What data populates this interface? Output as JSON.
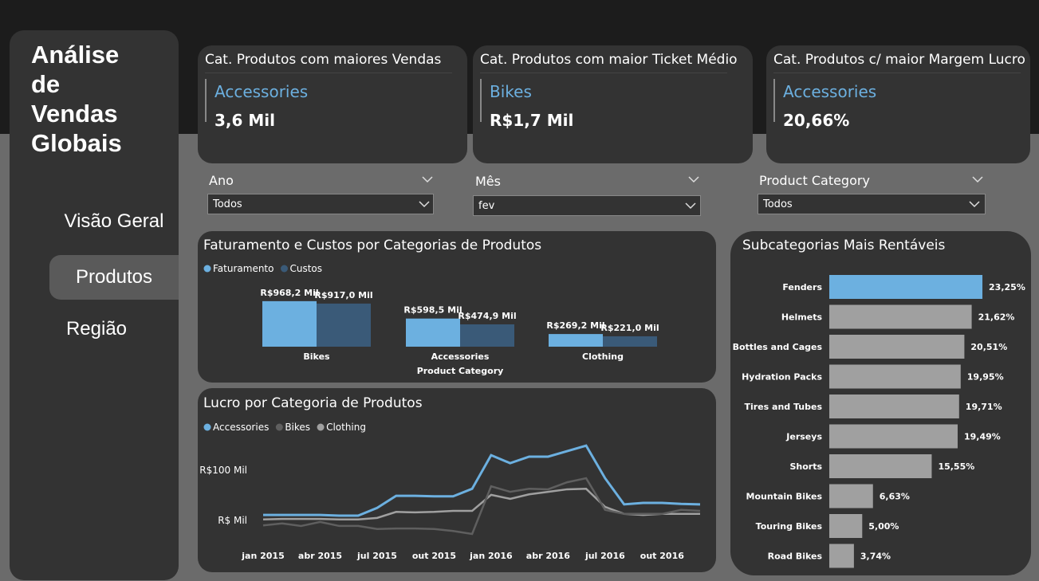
{
  "sidebar": {
    "title": "Análise de Vendas Globais",
    "nav": [
      "Visão Geral",
      "Produtos",
      "Região"
    ]
  },
  "cards": [
    {
      "title": "Cat. Produtos com maiores Vendas",
      "category": "Accessories",
      "value": "3,6 Mil"
    },
    {
      "title": "Cat. Produtos com maior Ticket Médio",
      "category": "Bikes",
      "value": "R$1,7 Mil"
    },
    {
      "title": "Cat. Produtos c/ maior Margem Lucro",
      "category": "Accessories",
      "value": "20,66%"
    }
  ],
  "filters": [
    {
      "label": "Ano",
      "value": "Todos"
    },
    {
      "label": "Mês",
      "value": "fev"
    },
    {
      "label": "Product Category",
      "value": "Todos"
    }
  ],
  "chart_data": [
    {
      "type": "bar",
      "title": "Faturamento e Custos por Categorias de Produtos",
      "x_label": "Product Category",
      "categories": [
        "Bikes",
        "Accessories",
        "Clothing"
      ],
      "series": [
        {
          "name": "Faturamento",
          "color": "#6cb0e0",
          "values": [
            968.2,
            598.5,
            269.2
          ],
          "value_labels": [
            "R$968,2 Mil",
            "R$598,5 Mil",
            "R$269,2 Mil"
          ]
        },
        {
          "name": "Custos",
          "color": "#3a5a78",
          "values": [
            917.0,
            474.9,
            221.0
          ],
          "value_labels": [
            "R$917,0 Mil",
            "R$474,9 Mil",
            "R$221,0 Mil"
          ]
        }
      ]
    },
    {
      "type": "line",
      "title": "Lucro por Categoria de Produtos",
      "categories": [
        "jan 2015",
        null,
        null,
        "abr 2015",
        null,
        null,
        "jul 2015",
        null,
        null,
        "out 2015",
        null,
        null,
        "jan 2016",
        null,
        null,
        "abr 2016",
        null,
        null,
        "jul 2016",
        null,
        null,
        "out 2016",
        null,
        null
      ],
      "series": [
        {
          "name": "Accessories",
          "color": "#6cb0e0",
          "values": [
            11,
            11,
            11,
            11,
            9.5,
            9.5,
            25,
            49,
            49,
            48,
            48,
            63,
            130,
            114,
            127,
            127,
            138,
            149,
            84,
            32,
            35,
            35,
            33,
            32
          ]
        },
        {
          "name": "Bikes",
          "color": "#5f5f5f",
          "values": [
            -10,
            -6,
            -11,
            -3,
            -11,
            -11,
            -17,
            -16,
            -16,
            -17,
            -21,
            -27,
            68,
            57,
            63,
            62,
            76,
            84,
            21,
            13,
            13,
            13,
            21,
            19
          ]
        },
        {
          "name": "Clothing",
          "color": "#a0a0a0",
          "values": [
            2,
            3,
            3,
            3,
            2,
            2,
            5,
            17,
            16,
            17,
            19,
            19,
            51,
            43,
            52,
            57,
            62,
            63,
            27,
            13,
            11,
            13,
            13,
            13
          ]
        }
      ],
      "ylim": [
        -30,
        160
      ],
      "yticks": [
        {
          "value": 0,
          "label": "R$ Mil"
        },
        {
          "value": 100,
          "label": "R$100 Mil"
        }
      ]
    },
    {
      "type": "barh",
      "title": "Subcategorias Mais Rentáveis",
      "categories": [
        "Fenders",
        "Helmets",
        "Bottles and Cages",
        "Hydration Packs",
        "Tires and Tubes",
        "Jerseys",
        "Shorts",
        "Mountain Bikes",
        "Touring Bikes",
        "Road Bikes"
      ],
      "values": [
        23.25,
        21.62,
        20.51,
        19.95,
        19.71,
        19.49,
        15.55,
        6.63,
        5.0,
        3.74
      ],
      "value_labels": [
        "23,25%",
        "21,62%",
        "20,51%",
        "19,95%",
        "19,71%",
        "19,49%",
        "15,55%",
        "6,63%",
        "5,00%",
        "3,74%"
      ],
      "colors": [
        "#6cb0e0",
        "#a0a0a0",
        "#a0a0a0",
        "#a0a0a0",
        "#a0a0a0",
        "#a0a0a0",
        "#a0a0a0",
        "#a0a0a0",
        "#a0a0a0",
        "#a0a0a0"
      ]
    }
  ]
}
